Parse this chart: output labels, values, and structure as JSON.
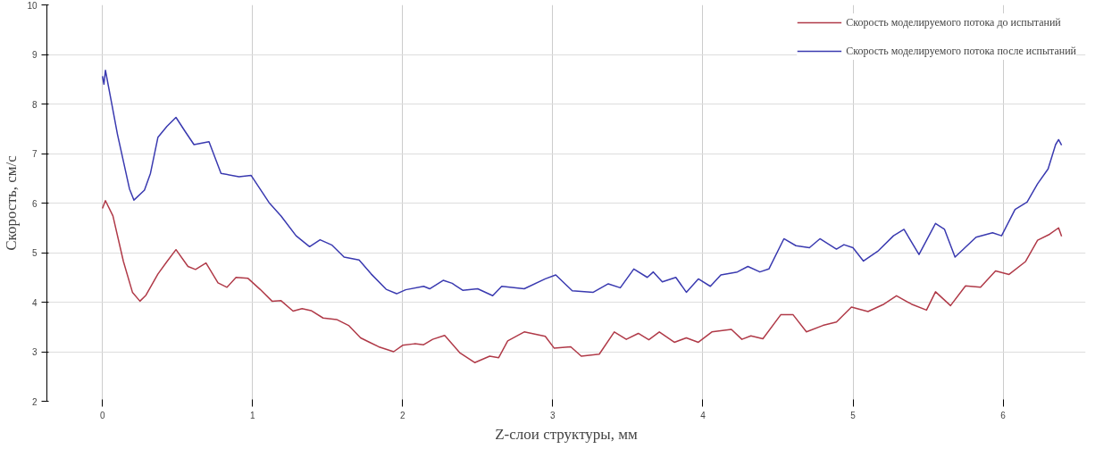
{
  "chart_data": {
    "type": "line",
    "xlabel": "Z-слои структуры, мм",
    "ylabel": "Скорость, см/с",
    "xlim": [
      -0.37,
      6.55
    ],
    "ylim": [
      2,
      10
    ],
    "xticks": [
      0,
      1,
      2,
      3,
      4,
      5,
      6
    ],
    "yticks": [
      2,
      3,
      4,
      5,
      6,
      7,
      8,
      9,
      10
    ],
    "grid": true,
    "legend": "top right",
    "line_style": "solid",
    "series": [
      {
        "name": "Скорость моделируемого потока до испытаний",
        "color": "#b03a48",
        "x": [
          0.0,
          0.02,
          0.07,
          0.14,
          0.2,
          0.25,
          0.29,
          0.37,
          0.43,
          0.49,
          0.57,
          0.62,
          0.69,
          0.77,
          0.83,
          0.89,
          0.97,
          1.05,
          1.13,
          1.19,
          1.27,
          1.33,
          1.39,
          1.47,
          1.56,
          1.64,
          1.72,
          1.78,
          1.84,
          1.94,
          2.0,
          2.08,
          2.14,
          2.2,
          2.28,
          2.38,
          2.48,
          2.58,
          2.64,
          2.7,
          2.81,
          2.95,
          3.01,
          3.12,
          3.19,
          3.31,
          3.41,
          3.49,
          3.57,
          3.64,
          3.71,
          3.81,
          3.89,
          3.97,
          4.06,
          4.19,
          4.26,
          4.32,
          4.4,
          4.52,
          4.6,
          4.69,
          4.8,
          4.89,
          4.99,
          5.1,
          5.2,
          5.29,
          5.39,
          5.49,
          5.55,
          5.65,
          5.75,
          5.85,
          5.95,
          6.04,
          6.15,
          6.23,
          6.31,
          6.37,
          6.39
        ],
        "values": [
          5.89,
          6.05,
          5.74,
          4.82,
          4.2,
          4.02,
          4.14,
          4.57,
          4.82,
          5.06,
          4.72,
          4.66,
          4.79,
          4.39,
          4.3,
          4.5,
          4.48,
          4.26,
          4.02,
          4.03,
          3.82,
          3.87,
          3.83,
          3.68,
          3.65,
          3.53,
          3.28,
          3.19,
          3.1,
          3.0,
          3.13,
          3.16,
          3.14,
          3.25,
          3.33,
          2.98,
          2.78,
          2.91,
          2.88,
          3.22,
          3.4,
          3.31,
          3.07,
          3.1,
          2.91,
          2.95,
          3.4,
          3.25,
          3.37,
          3.24,
          3.4,
          3.19,
          3.28,
          3.19,
          3.4,
          3.45,
          3.25,
          3.32,
          3.26,
          3.75,
          3.75,
          3.4,
          3.53,
          3.6,
          3.9,
          3.81,
          3.95,
          4.13,
          3.96,
          3.84,
          4.21,
          3.93,
          4.33,
          4.3,
          4.63,
          4.56,
          4.82,
          5.25,
          5.37,
          5.5,
          5.33
        ]
      },
      {
        "name": "Скорость моделируемого потока после испытаний",
        "color": "#3a3ab0",
        "x": [
          0.0,
          0.01,
          0.02,
          0.06,
          0.1,
          0.14,
          0.18,
          0.21,
          0.28,
          0.32,
          0.37,
          0.43,
          0.49,
          0.55,
          0.61,
          0.71,
          0.79,
          0.91,
          0.99,
          1.11,
          1.19,
          1.29,
          1.38,
          1.45,
          1.53,
          1.61,
          1.71,
          1.79,
          1.89,
          1.96,
          2.02,
          2.14,
          2.18,
          2.27,
          2.33,
          2.4,
          2.5,
          2.6,
          2.66,
          2.81,
          2.95,
          3.02,
          3.13,
          3.27,
          3.37,
          3.45,
          3.54,
          3.63,
          3.67,
          3.73,
          3.82,
          3.89,
          3.97,
          4.05,
          4.12,
          4.23,
          4.3,
          4.38,
          4.44,
          4.54,
          4.62,
          4.71,
          4.78,
          4.89,
          4.94,
          5.0,
          5.07,
          5.17,
          5.27,
          5.34,
          5.44,
          5.55,
          5.61,
          5.68,
          5.82,
          5.93,
          5.99,
          6.08,
          6.16,
          6.23,
          6.3,
          6.35,
          6.37,
          6.39
        ],
        "values": [
          8.56,
          8.4,
          8.68,
          8.04,
          7.39,
          6.84,
          6.29,
          6.06,
          6.26,
          6.6,
          7.33,
          7.55,
          7.73,
          7.45,
          7.18,
          7.24,
          6.6,
          6.53,
          6.56,
          6.01,
          5.74,
          5.34,
          5.12,
          5.26,
          5.15,
          4.91,
          4.85,
          4.57,
          4.26,
          4.17,
          4.25,
          4.32,
          4.27,
          4.44,
          4.38,
          4.24,
          4.27,
          4.13,
          4.32,
          4.27,
          4.47,
          4.55,
          4.23,
          4.2,
          4.37,
          4.29,
          4.67,
          4.5,
          4.61,
          4.41,
          4.5,
          4.2,
          4.47,
          4.32,
          4.55,
          4.61,
          4.72,
          4.61,
          4.67,
          5.28,
          5.14,
          5.1,
          5.28,
          5.07,
          5.16,
          5.1,
          4.83,
          5.04,
          5.34,
          5.47,
          4.96,
          5.59,
          5.47,
          4.91,
          5.31,
          5.4,
          5.34,
          5.87,
          6.02,
          6.39,
          6.69,
          7.18,
          7.28,
          7.17
        ]
      }
    ]
  }
}
